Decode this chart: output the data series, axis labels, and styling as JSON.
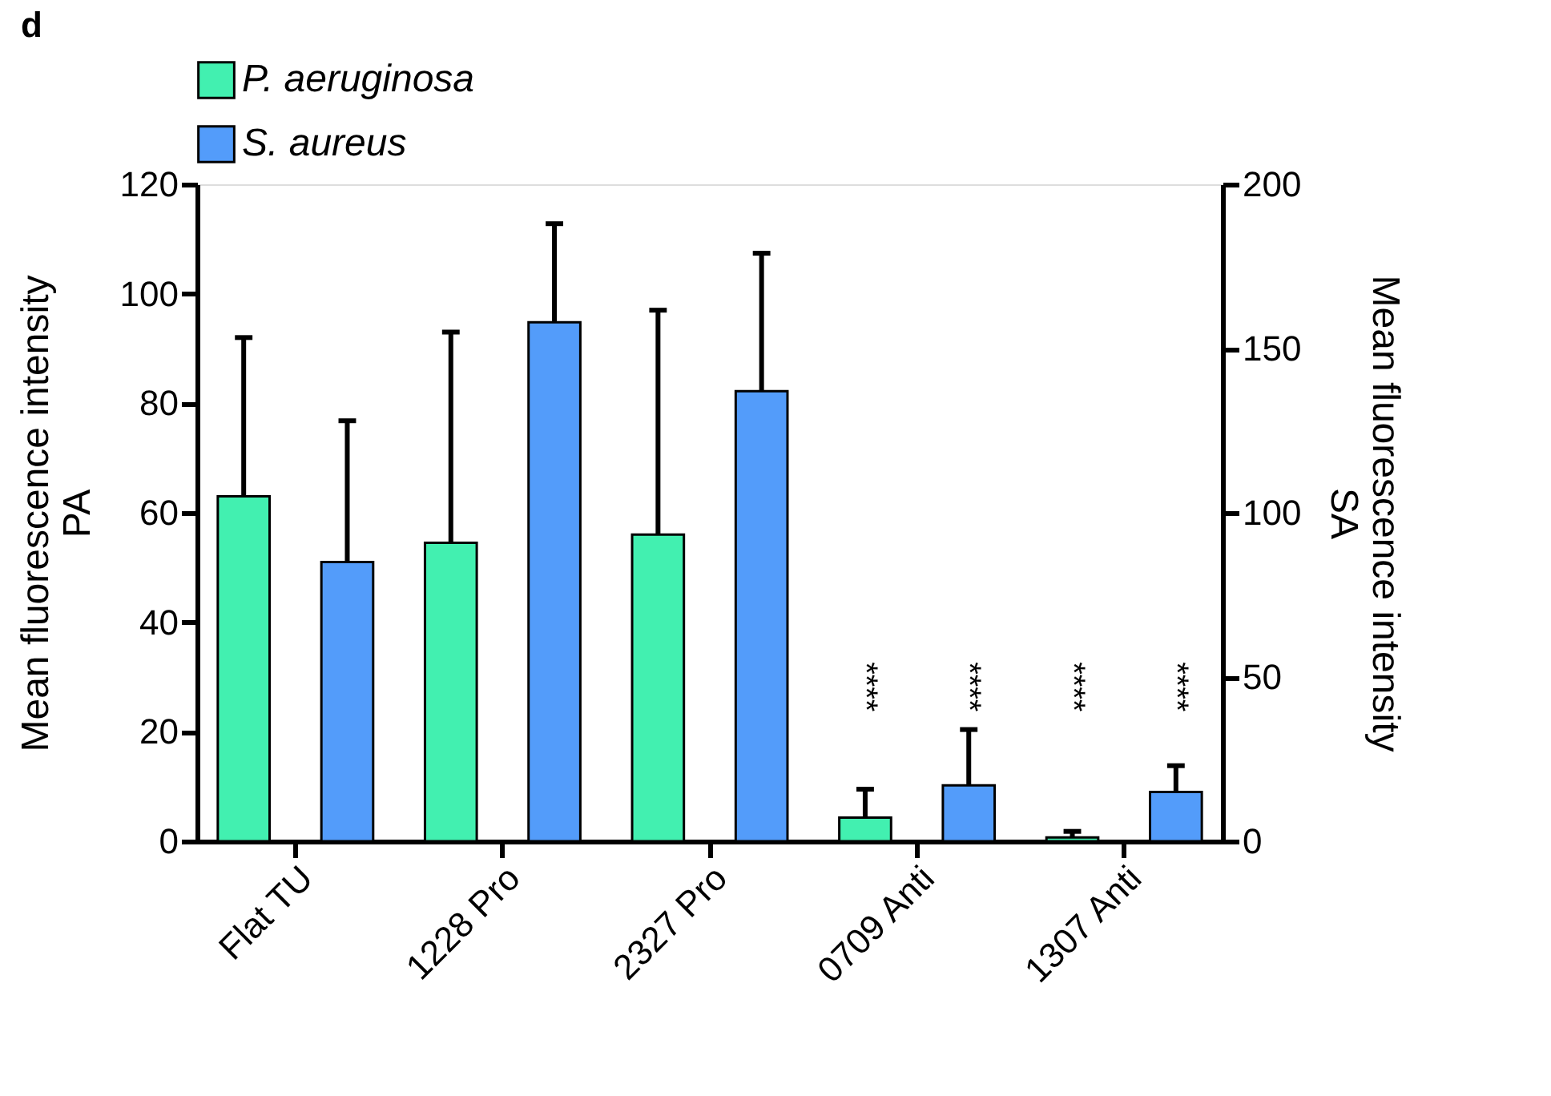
{
  "chart_data": {
    "type": "bar",
    "title": "d",
    "categories": [
      "Flat TU",
      "1228 Pro",
      "2327 Pro",
      "0709 Anti",
      "1307 Anti"
    ],
    "series": [
      {
        "name": "P. aeruginosa",
        "color": "#42f0b0",
        "values": [
          63,
          54.5,
          56,
          4.3,
          0.7
        ],
        "errors": [
          [
            63,
            92
          ],
          [
            54.5,
            93
          ],
          [
            56,
            97
          ],
          [
            4.3,
            9.5
          ],
          [
            0.7,
            1.8
          ]
        ]
      },
      {
        "name": "S. aureus",
        "color": "#539cfa",
        "axis": "y2",
        "values": [
          85,
          158,
          137,
          17,
          15
        ],
        "errors": [
          [
            85,
            128
          ],
          [
            158,
            188
          ],
          [
            137,
            179
          ],
          [
            17,
            34
          ],
          [
            15,
            23
          ]
        ]
      }
    ],
    "ylabel": "Mean fluorescence intensity PA",
    "y2label": "Mean fluorescence intensity SA",
    "ylim": [
      0,
      120
    ],
    "yticks": [
      0,
      20,
      40,
      60,
      80,
      100,
      120
    ],
    "y2lim": [
      0,
      200
    ],
    "y2ticks": [
      0,
      50,
      100,
      150,
      200
    ],
    "annotations": [
      "****",
      "****",
      "****",
      "****"
    ],
    "legend": "top",
    "grid": false
  }
}
